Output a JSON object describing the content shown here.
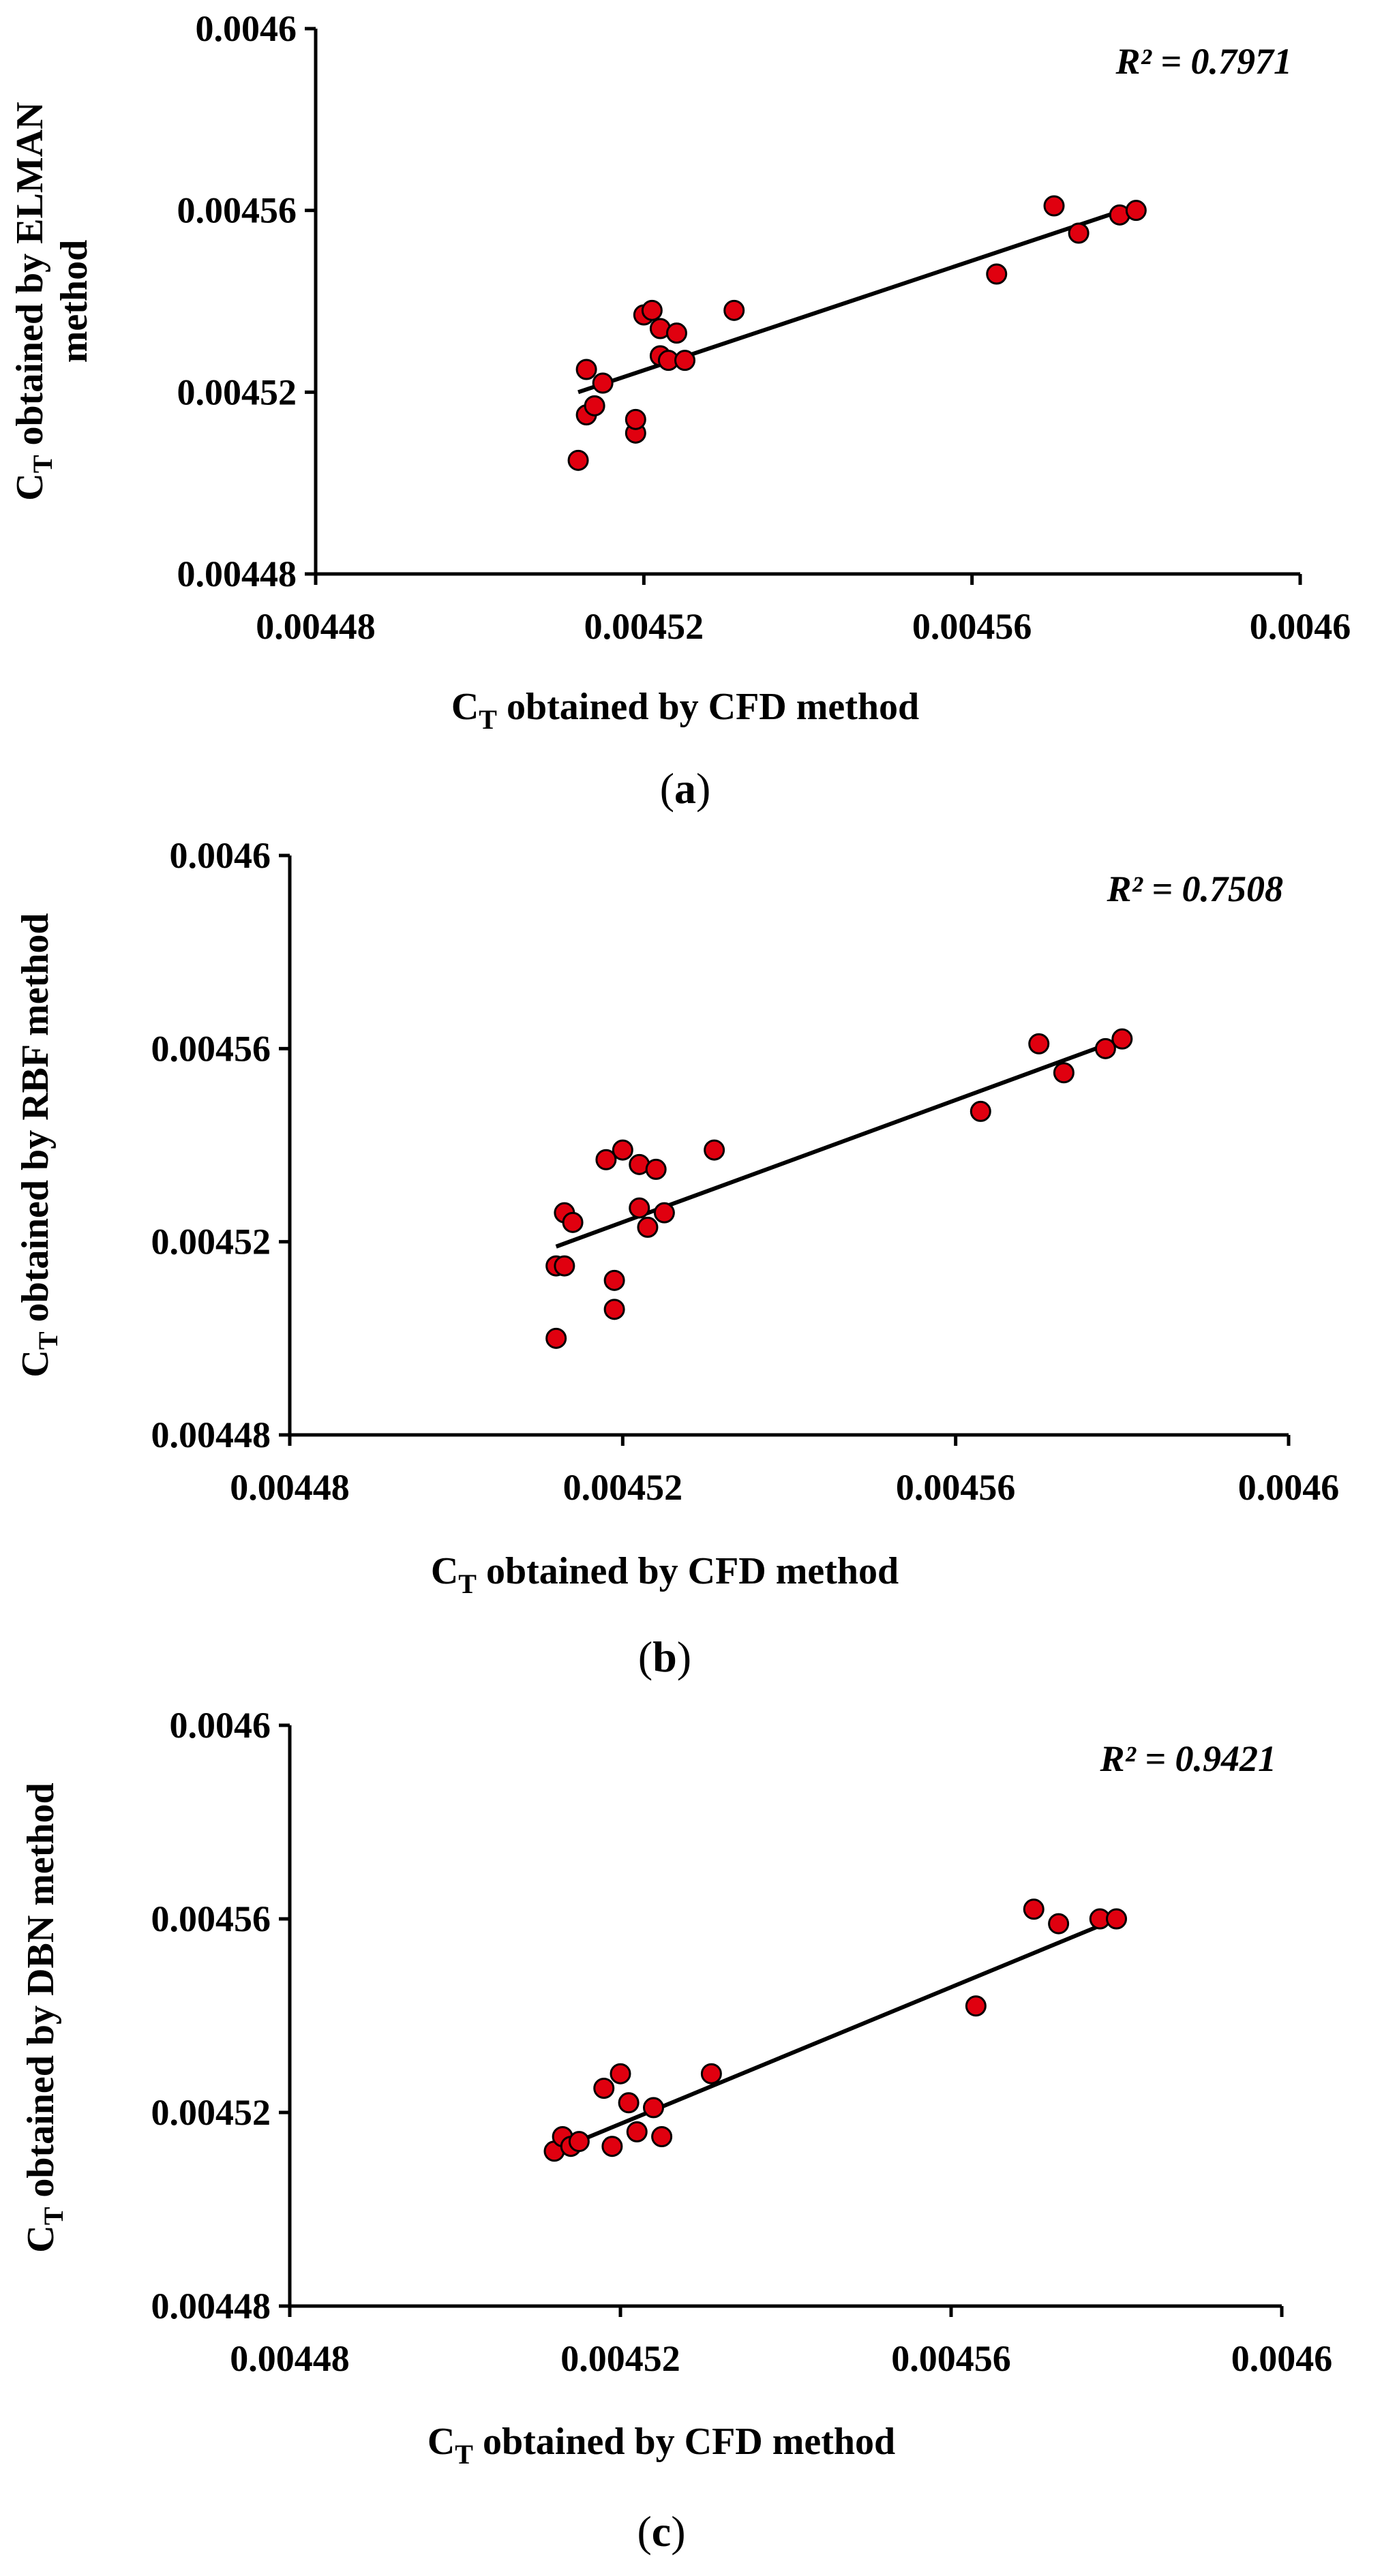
{
  "chart_data": [
    {
      "type": "scatter",
      "panel_label": "a",
      "xlabel": {
        "main": "C",
        "sub": "T",
        "rest": " obtained by CFD method"
      },
      "ylabel": {
        "main": "C",
        "sub": "T",
        "line1": " obtained by ELMAN",
        "line2": "method"
      },
      "xlim": [
        0.00448,
        0.0046
      ],
      "ylim": [
        0.00448,
        0.0046
      ],
      "xticks": [
        "0.00448",
        "0.00452",
        "0.00456",
        "0.0046"
      ],
      "yticks": [
        "0.00448",
        "0.00452",
        "0.00456",
        "0.0046"
      ],
      "r2_text": "R² = 0.7971",
      "fit": {
        "x": [
          0.004512,
          0.00458
        ],
        "y": [
          0.00452,
          0.004561
        ]
      },
      "points": [
        [
          0.004512,
          0.004505
        ],
        [
          0.004513,
          0.004515
        ],
        [
          0.004513,
          0.004525
        ],
        [
          0.004514,
          0.004517
        ],
        [
          0.004515,
          0.004522
        ],
        [
          0.004519,
          0.004511
        ],
        [
          0.004519,
          0.004514
        ],
        [
          0.00452,
          0.004537
        ],
        [
          0.004521,
          0.004538
        ],
        [
          0.004522,
          0.004534
        ],
        [
          0.004522,
          0.004528
        ],
        [
          0.004523,
          0.004527
        ],
        [
          0.004524,
          0.004533
        ],
        [
          0.004525,
          0.004527
        ],
        [
          0.004531,
          0.004538
        ],
        [
          0.004563,
          0.004546
        ],
        [
          0.00457,
          0.004561
        ],
        [
          0.004573,
          0.004555
        ],
        [
          0.004578,
          0.004559
        ],
        [
          0.00458,
          0.00456
        ]
      ]
    },
    {
      "type": "scatter",
      "panel_label": "b",
      "xlabel": {
        "main": "C",
        "sub": "T",
        "rest": " obtained by CFD method"
      },
      "ylabel": {
        "main": "C",
        "sub": "T",
        "line1": " obtained by RBF method",
        "line2": ""
      },
      "xlim": [
        0.00448,
        0.0046
      ],
      "ylim": [
        0.00448,
        0.0046
      ],
      "xticks": [
        "0.00448",
        "0.00452",
        "0.00456",
        "0.0046"
      ],
      "yticks": [
        "0.00448",
        "0.00452",
        "0.00456",
        "0.0046"
      ],
      "r2_text": "R² = 0.7508",
      "fit": {
        "x": [
          0.004512,
          0.00458
        ],
        "y": [
          0.004519,
          0.004562
        ]
      },
      "points": [
        [
          0.004512,
          0.0045
        ],
        [
          0.004512,
          0.004515
        ],
        [
          0.004513,
          0.004526
        ],
        [
          0.004513,
          0.004515
        ],
        [
          0.004514,
          0.004524
        ],
        [
          0.004519,
          0.004506
        ],
        [
          0.004519,
          0.004512
        ],
        [
          0.004518,
          0.004537
        ],
        [
          0.00452,
          0.004539
        ],
        [
          0.004522,
          0.004536
        ],
        [
          0.004522,
          0.004527
        ],
        [
          0.004523,
          0.004523
        ],
        [
          0.004524,
          0.004535
        ],
        [
          0.004525,
          0.004526
        ],
        [
          0.004531,
          0.004539
        ],
        [
          0.004563,
          0.004547
        ],
        [
          0.00457,
          0.004561
        ],
        [
          0.004573,
          0.004555
        ],
        [
          0.004578,
          0.00456
        ],
        [
          0.00458,
          0.004562
        ]
      ]
    },
    {
      "type": "scatter",
      "panel_label": "c",
      "xlabel": {
        "main": "C",
        "sub": "T",
        "rest": " obtained by CFD method"
      },
      "ylabel": {
        "main": "C",
        "sub": "T",
        "line1": " obtained by DBN method",
        "line2": ""
      },
      "xlim": [
        0.00448,
        0.0046
      ],
      "ylim": [
        0.00448,
        0.0046
      ],
      "xticks": [
        "0.00448",
        "0.00452",
        "0.00456",
        "0.0046"
      ],
      "yticks": [
        "0.00448",
        "0.00452",
        "0.00456",
        "0.0046"
      ],
      "r2_text": "R² = 0.9421",
      "fit": {
        "x": [
          0.004512,
          0.00458
        ],
        "y": [
          0.004512,
          0.00456
        ]
      },
      "points": [
        [
          0.004512,
          0.004512
        ],
        [
          0.004513,
          0.004515
        ],
        [
          0.004514,
          0.004513
        ],
        [
          0.004515,
          0.004514
        ],
        [
          0.004518,
          0.004525
        ],
        [
          0.004519,
          0.004513
        ],
        [
          0.00452,
          0.004528
        ],
        [
          0.004521,
          0.004522
        ],
        [
          0.004522,
          0.004516
        ],
        [
          0.004524,
          0.004521
        ],
        [
          0.004525,
          0.004515
        ],
        [
          0.004531,
          0.004528
        ],
        [
          0.004563,
          0.004542
        ],
        [
          0.00457,
          0.004562
        ],
        [
          0.004573,
          0.004559
        ],
        [
          0.004578,
          0.00456
        ],
        [
          0.00458,
          0.00456
        ]
      ]
    }
  ],
  "colors": {
    "point_fill": "#e0000f",
    "point_stroke": "#000000",
    "axis": "#000000",
    "fit_line": "#000000"
  }
}
